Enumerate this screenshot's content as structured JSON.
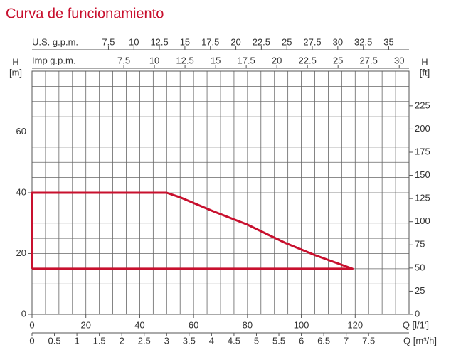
{
  "chart_data": {
    "type": "line",
    "title": "Curva de funcionamiento",
    "xlabel": "Q [l/1']",
    "ylabel": "H",
    "yunit": "[m]",
    "x": [
      0,
      0,
      50,
      55,
      67,
      80,
      94,
      105,
      119,
      0
    ],
    "series": [
      {
        "color": "#c8102e",
        "values": [
          15,
          40,
          40,
          38.5,
          34,
          29.5,
          23.5,
          19.5,
          15,
          15
        ]
      }
    ],
    "xlim": [
      0,
      140
    ],
    "xticks": [
      0,
      20,
      40,
      60,
      80,
      100,
      120
    ],
    "ylim": [
      0,
      80
    ],
    "yticks": [
      0,
      20,
      40,
      60
    ],
    "grid": true,
    "xgrid": [
      0,
      5,
      10,
      15,
      20,
      25,
      30,
      35,
      40,
      45,
      50,
      55,
      60,
      65,
      70,
      75,
      80,
      85,
      90,
      95,
      100,
      105,
      110,
      115,
      120,
      125,
      130,
      135,
      140
    ],
    "ygrid": [
      0,
      5,
      10,
      15,
      20,
      25,
      30,
      35,
      40,
      45,
      50,
      55,
      60,
      65,
      70,
      75,
      80
    ],
    "x2label": "Q [m³/h]",
    "x2lim": [
      0,
      8.4
    ],
    "x2ticks": [
      0,
      0.5,
      1,
      1.5,
      2,
      2.5,
      3,
      3.5,
      4,
      4.5,
      5,
      5.5,
      6,
      6.5,
      7,
      7.5
    ],
    "x3label": "U.S. g.p.m.",
    "x3lim": [
      0,
      36.99
    ],
    "x3ticks": [
      7.5,
      10,
      12.5,
      15,
      17.5,
      20,
      22.5,
      25,
      27.5,
      30,
      32.5,
      35
    ],
    "x4label": "Imp g.p.m.",
    "x4lim": [
      0,
      30.8
    ],
    "x4ticks": [
      7.5,
      10,
      12.5,
      15,
      17.5,
      20,
      22.5,
      25,
      27.5,
      30
    ],
    "y2label": "H",
    "y2unit": "[ft]",
    "y2lim": [
      0,
      262.5
    ],
    "y2ticks": [
      0,
      25,
      50,
      75,
      100,
      125,
      150,
      175,
      200,
      225
    ]
  }
}
